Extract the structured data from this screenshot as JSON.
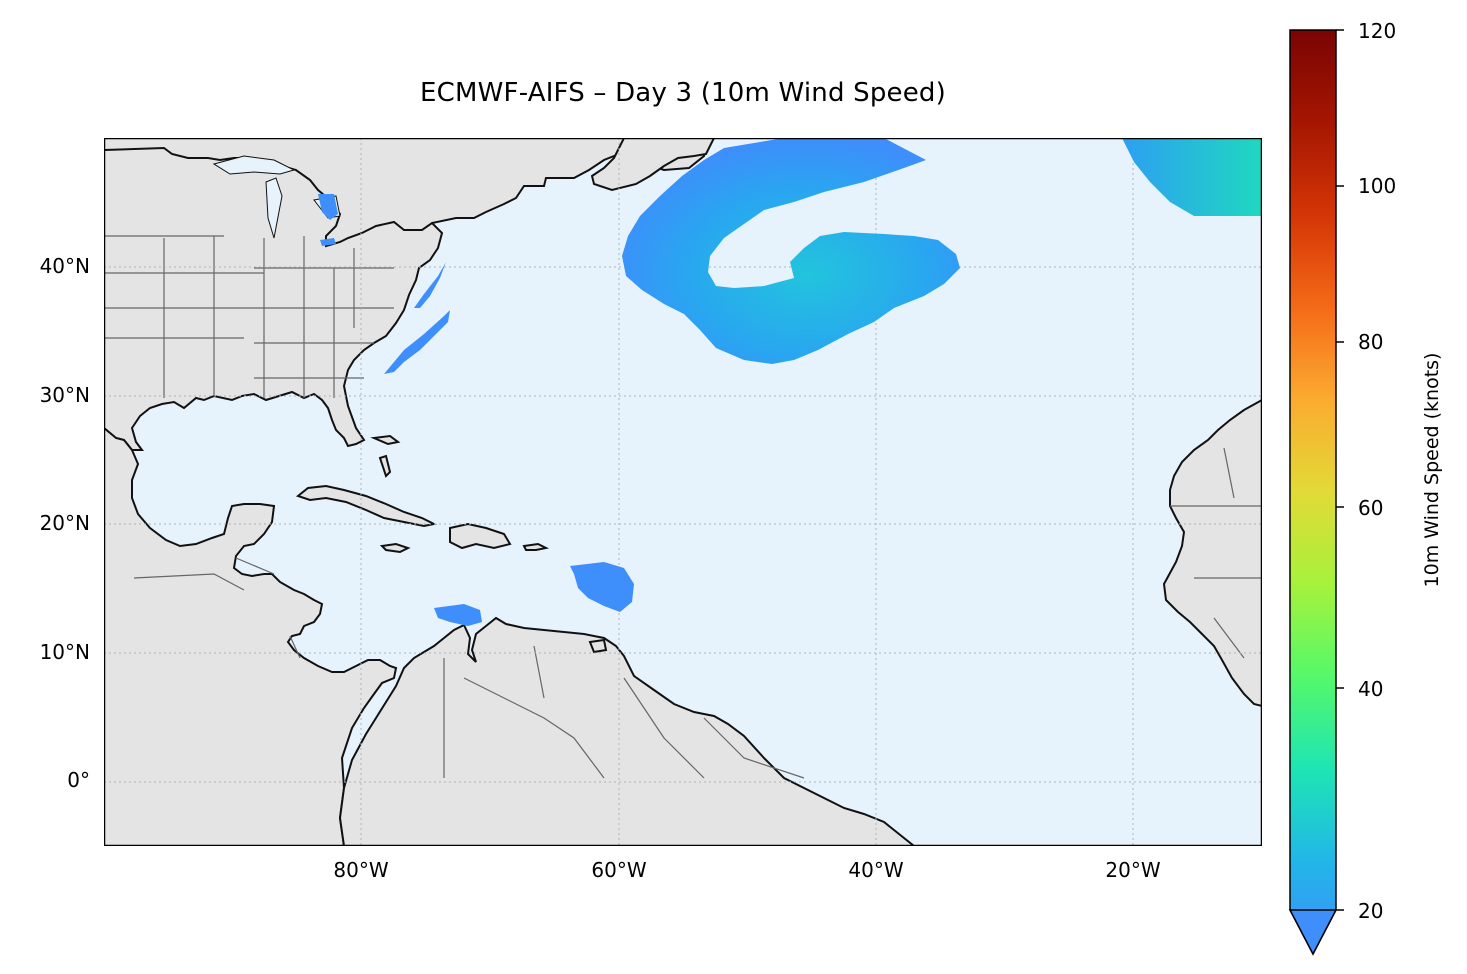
{
  "title": "ECMWF-AIFS – Day 3 (10m Wind Speed)",
  "map": {
    "projection": "PlateCarree",
    "extent_lon": [
      -100,
      -10
    ],
    "extent_lat": [
      -5,
      50
    ],
    "ocean_color": "#e6f3fc",
    "land_color": "#e4e4e4",
    "coastline_color": "#111111",
    "border_color": "#666666",
    "gridline_style": "dotted",
    "lat_labels": [
      "40°N",
      "30°N",
      "20°N",
      "10°N",
      "0°"
    ],
    "lon_labels": [
      "80°W",
      "60°W",
      "40°W",
      "20°W"
    ],
    "wind_features": [
      "central-atlantic-cyclone-swirl",
      "northeast-atlantic-wind-band",
      "us-east-coast-wind-strip",
      "great-lakes-wind-patch",
      "lesser-antilles-wind-patch",
      "venezuela-coast-wind-patch"
    ]
  },
  "colorbar": {
    "label": "10m Wind Speed (knots)",
    "ticks": [
      "120",
      "100",
      "80",
      "60",
      "40",
      "20"
    ],
    "range": [
      20,
      120
    ],
    "extend": "min",
    "colormap": "turbo",
    "stops": [
      "#3e8efb",
      "#22b6e8",
      "#1ee5b4",
      "#55f86a",
      "#a6f23b",
      "#e2da36",
      "#fbab30",
      "#f46a17",
      "#d43506",
      "#a51602",
      "#7a0403"
    ]
  }
}
